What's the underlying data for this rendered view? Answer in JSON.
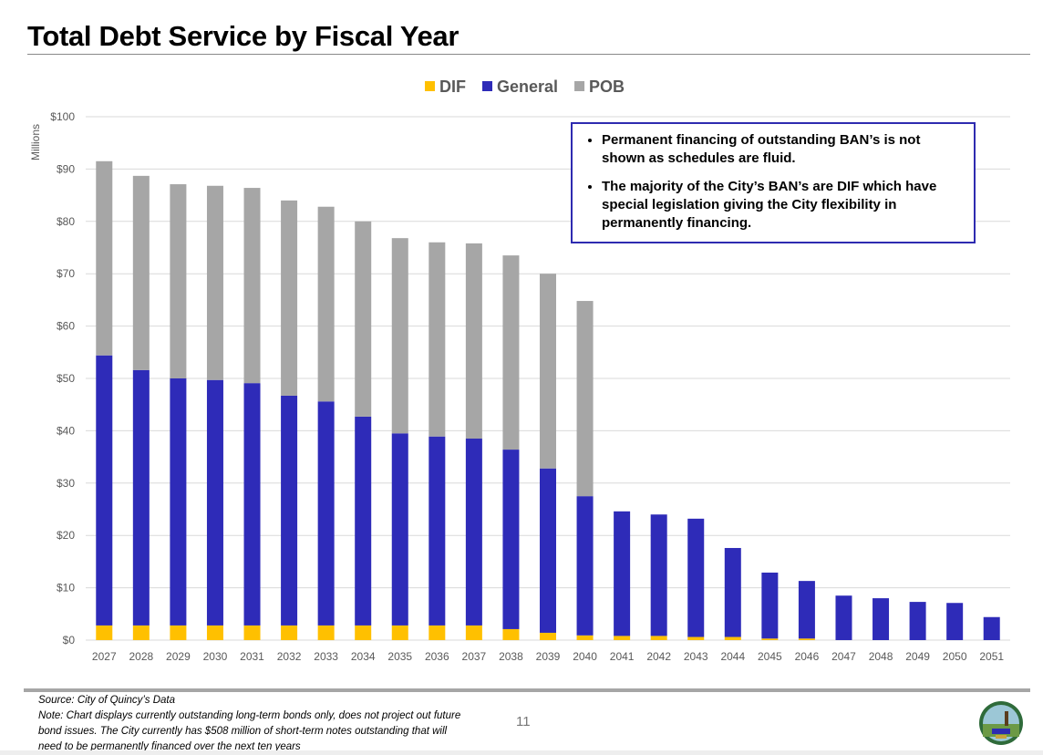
{
  "page": {
    "title": "Total Debt Service by Fiscal Year",
    "page_number": "11",
    "footer": {
      "source": "Source: City of Quincy’s Data",
      "note_line1": "Note: Chart displays currently outstanding long-term bonds only, does not project out future",
      "note_line2": "bond issues.  The City currently has $508 million of short-term notes outstanding that will",
      "note_line3": "need to be permanently financed over the next ten years"
    },
    "logo": {
      "text": "QUINCY 1625"
    }
  },
  "notes": [
    "Permanent financing of outstanding BAN’s is not shown as schedules are fluid.",
    "The majority of the City’s BAN’s are DIF which have special legislation giving the City flexibility in permanently financing."
  ],
  "chart_data": {
    "type": "bar",
    "stacked": true,
    "title": "",
    "xlabel": "",
    "ylabel": "Millions",
    "ylim": [
      0,
      100
    ],
    "yticks": [
      0,
      10,
      20,
      30,
      40,
      50,
      60,
      70,
      80,
      90,
      100
    ],
    "ytick_labels": [
      "$0",
      "$10",
      "$20",
      "$30",
      "$40",
      "$50",
      "$60",
      "$70",
      "$80",
      "$90",
      "$100"
    ],
    "grid": true,
    "legend_position": "top",
    "categories": [
      "2027",
      "2028",
      "2029",
      "2030",
      "2031",
      "2032",
      "2033",
      "2034",
      "2035",
      "2036",
      "2037",
      "2038",
      "2039",
      "2040",
      "2041",
      "2042",
      "2043",
      "2044",
      "2045",
      "2046",
      "2047",
      "2048",
      "2049",
      "2050",
      "2051"
    ],
    "series": [
      {
        "name": "DIF",
        "color": "#ffc000",
        "values": [
          2.8,
          2.8,
          2.8,
          2.8,
          2.8,
          2.8,
          2.8,
          2.8,
          2.8,
          2.8,
          2.8,
          2.1,
          1.4,
          0.9,
          0.8,
          0.8,
          0.6,
          0.6,
          0.3,
          0.3,
          0,
          0,
          0,
          0,
          0
        ]
      },
      {
        "name": "General",
        "color": "#2e2bb8",
        "values": [
          51.6,
          48.8,
          47.2,
          46.9,
          46.3,
          43.9,
          42.8,
          39.9,
          36.7,
          36.1,
          35.7,
          34.3,
          31.4,
          26.6,
          23.8,
          23.2,
          22.6,
          17.0,
          12.6,
          11.0,
          8.5,
          8.0,
          7.3,
          7.1,
          4.4
        ]
      },
      {
        "name": "POB",
        "color": "#a6a6a6",
        "values": [
          37.1,
          37.1,
          37.1,
          37.1,
          37.3,
          37.3,
          37.2,
          37.3,
          37.3,
          37.1,
          37.3,
          37.1,
          37.2,
          37.3,
          0,
          0,
          0,
          0,
          0,
          0,
          0,
          0,
          0,
          0,
          0
        ]
      }
    ]
  }
}
